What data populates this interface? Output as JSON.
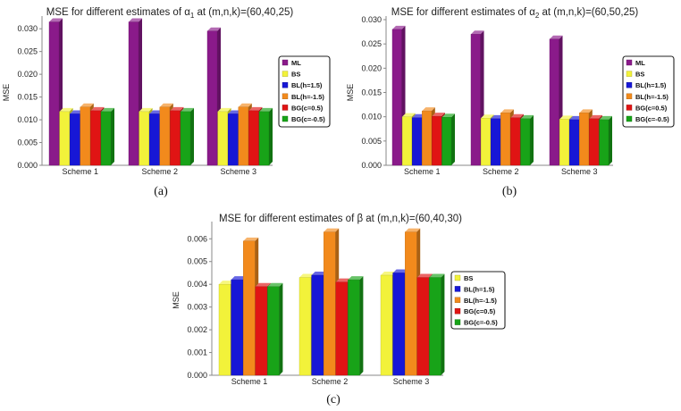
{
  "colors": {
    "ML": "#8a1a8a",
    "BS": "#f2f23a",
    "BL(h=1.5)": "#1717d6",
    "BL(h=-1.5)": "#f28a1c",
    "BG(c=0.5)": "#e01414",
    "BG(c=-0.5)": "#18a318"
  },
  "chart_data": [
    {
      "type": "bar",
      "title": "MSE for different estimates of α",
      "title_sub": "1",
      "title_tail": " at (m,n,k)=(60,40,25)",
      "caption": "(a)",
      "xlabel": "",
      "ylabel": "MSE",
      "ylim": [
        0,
        0.032
      ],
      "yticks": [
        "0.000",
        "0.005",
        "0.010",
        "0.015",
        "0.020",
        "0.025",
        "0.030"
      ],
      "categories": [
        "Scheme 1",
        "Scheme 2",
        "Scheme 3"
      ],
      "legend_position": "right",
      "series": [
        {
          "name": "ML",
          "values": [
            0.0315,
            0.0315,
            0.0295
          ]
        },
        {
          "name": "BS",
          "values": [
            0.0118,
            0.0118,
            0.0118
          ]
        },
        {
          "name": "BL(h=1.5)",
          "values": [
            0.0113,
            0.0113,
            0.0113
          ]
        },
        {
          "name": "BL(h=-1.5)",
          "values": [
            0.0128,
            0.0128,
            0.0128
          ]
        },
        {
          "name": "BG(c=0.5)",
          "values": [
            0.012,
            0.012,
            0.012
          ]
        },
        {
          "name": "BG(c=-0.5)",
          "values": [
            0.0118,
            0.0118,
            0.0118
          ]
        }
      ]
    },
    {
      "type": "bar",
      "title": "MSE for different estimates of α",
      "title_sub": "2",
      "title_tail": " at (m,n,k)=(60,50,25)",
      "caption": "(b)",
      "xlabel": "",
      "ylabel": "MSE",
      "ylim": [
        0,
        0.03
      ],
      "yticks": [
        "0.000",
        "0.005",
        "0.010",
        "0.015",
        "0.020",
        "0.025",
        "0.030"
      ],
      "categories": [
        "Scheme 1",
        "Scheme 2",
        "Scheme 3"
      ],
      "legend_position": "right",
      "series": [
        {
          "name": "ML",
          "values": [
            0.028,
            0.027,
            0.026
          ]
        },
        {
          "name": "BS",
          "values": [
            0.01,
            0.0097,
            0.0095
          ]
        },
        {
          "name": "BL(h=1.5)",
          "values": [
            0.0098,
            0.0096,
            0.0094
          ]
        },
        {
          "name": "BL(h=-1.5)",
          "values": [
            0.0112,
            0.0108,
            0.0108
          ]
        },
        {
          "name": "BG(c=0.5)",
          "values": [
            0.0101,
            0.0098,
            0.0096
          ]
        },
        {
          "name": "BG(c=-0.5)",
          "values": [
            0.0099,
            0.0096,
            0.0094
          ]
        }
      ]
    },
    {
      "type": "bar",
      "title": "MSE for different estimates of β",
      "title_sub": "",
      "title_tail": " at (m,n,k)=(60,40,30)",
      "caption": "(c)",
      "xlabel": "",
      "ylabel": "MSE",
      "ylim": [
        0,
        0.0066
      ],
      "yticks": [
        "0.000",
        "0.001",
        "0.002",
        "0.003",
        "0.004",
        "0.005",
        "0.006"
      ],
      "categories": [
        "Scheme 1",
        "Scheme 2",
        "Scheme 3"
      ],
      "legend_position": "right",
      "series": [
        {
          "name": "BS",
          "values": [
            0.004,
            0.0043,
            0.0044
          ]
        },
        {
          "name": "BL(h=1.5)",
          "values": [
            0.0042,
            0.0044,
            0.0045
          ]
        },
        {
          "name": "BL(h=-1.5)",
          "values": [
            0.0059,
            0.0063,
            0.0063
          ]
        },
        {
          "name": "BG(c=0.5)",
          "values": [
            0.0039,
            0.0041,
            0.0043
          ]
        },
        {
          "name": "BG(c=-0.5)",
          "values": [
            0.0039,
            0.0042,
            0.0043
          ]
        }
      ]
    }
  ]
}
